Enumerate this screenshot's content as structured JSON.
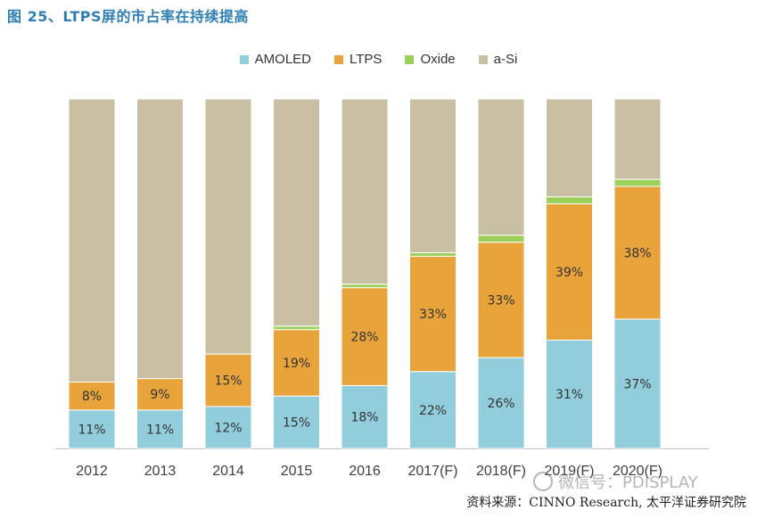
{
  "figure": {
    "title": "图 25、LTPS屏的市占率在持续提高",
    "source": "资料来源：CINNO Research, 太平洋证券研究院",
    "watermark": "微信号：PDISPLAY"
  },
  "chart_data": {
    "type": "bar",
    "stacked": true,
    "percent_stacked": true,
    "categories": [
      "2012",
      "2013",
      "2014",
      "2015",
      "2016",
      "2017(F)",
      "2018(F)",
      "2019(F)",
      "2020(F)"
    ],
    "series": [
      {
        "name": "AMOLED",
        "color": "#92cddc",
        "values": [
          11,
          11,
          12,
          15,
          18,
          22,
          26,
          31,
          37
        ],
        "labels": [
          "11%",
          "11%",
          "12%",
          "15%",
          "18%",
          "22%",
          "26%",
          "31%",
          "37%"
        ]
      },
      {
        "name": "LTPS",
        "color": "#e8a33a",
        "values": [
          8,
          9,
          15,
          19,
          28,
          33,
          33,
          39,
          38
        ],
        "labels": [
          "8%",
          "9%",
          "15%",
          "19%",
          "28%",
          "33%",
          "33%",
          "39%",
          "38%"
        ]
      },
      {
        "name": "Oxide",
        "color": "#9bd05a",
        "values": [
          0,
          0,
          0,
          1,
          1,
          1,
          2,
          2,
          2
        ],
        "labels": [
          "",
          "",
          "",
          "",
          "",
          "",
          "",
          "",
          ""
        ]
      },
      {
        "name": "a-Si",
        "color": "#c9bfa2",
        "values": [
          81,
          80,
          73,
          65,
          53,
          44,
          39,
          28,
          23
        ],
        "labels": [
          "",
          "",
          "",
          "",
          "",
          "",
          "",
          "",
          ""
        ]
      }
    ],
    "ylim": [
      0,
      100
    ],
    "legend_position": "top-center",
    "grid": false
  }
}
